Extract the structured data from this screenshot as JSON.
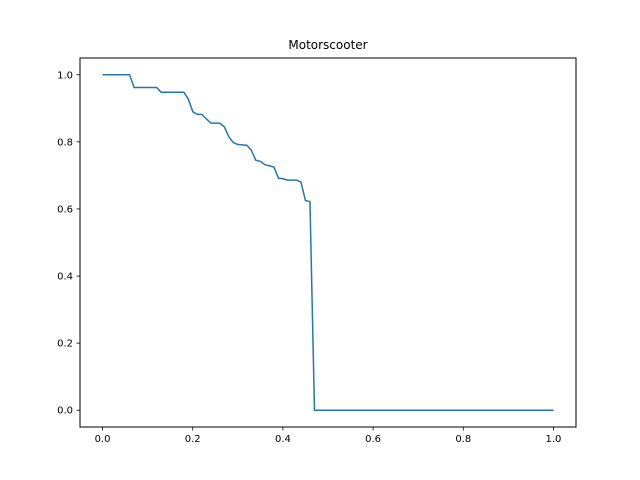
{
  "chart_data": {
    "type": "line",
    "title": "Motorscooter",
    "xlabel": "",
    "ylabel": "",
    "xlim": [
      -0.05,
      1.05
    ],
    "ylim": [
      -0.05,
      1.05
    ],
    "xticks": [
      0.0,
      0.2,
      0.4,
      0.6,
      0.8,
      1.0
    ],
    "xtick_labels": [
      "0.0",
      "0.2",
      "0.4",
      "0.6",
      "0.8",
      "1.0"
    ],
    "yticks": [
      0.0,
      0.2,
      0.4,
      0.6,
      0.8,
      1.0
    ],
    "ytick_labels": [
      "0.0",
      "0.2",
      "0.4",
      "0.6",
      "0.8",
      "1.0"
    ],
    "grid": false,
    "series": [
      {
        "color": "#1f77b4",
        "x": [
          0.0,
          0.06,
          0.07,
          0.12,
          0.13,
          0.18,
          0.19,
          0.2,
          0.21,
          0.22,
          0.24,
          0.26,
          0.27,
          0.28,
          0.29,
          0.3,
          0.32,
          0.33,
          0.34,
          0.35,
          0.36,
          0.38,
          0.39,
          0.4,
          0.41,
          0.43,
          0.44,
          0.45,
          0.46,
          0.47,
          0.48,
          1.0
        ],
        "y": [
          1.0,
          1.0,
          0.962,
          0.962,
          0.948,
          0.948,
          0.928,
          0.89,
          0.882,
          0.882,
          0.856,
          0.856,
          0.845,
          0.815,
          0.798,
          0.792,
          0.79,
          0.775,
          0.745,
          0.742,
          0.732,
          0.725,
          0.692,
          0.69,
          0.686,
          0.686,
          0.68,
          0.625,
          0.622,
          0.0,
          0.0,
          0.0
        ]
      }
    ]
  }
}
